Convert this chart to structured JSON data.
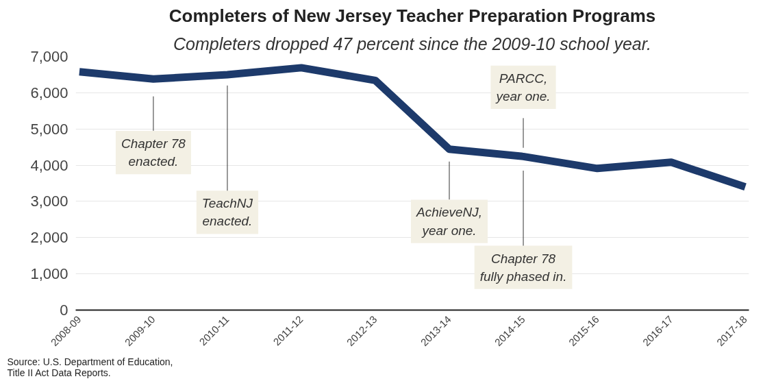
{
  "chart_data": {
    "type": "line",
    "title": "Completers of New Jersey Teacher Preparation Programs",
    "subtitle": "Completers dropped 47 percent since the 2009-10 school year.",
    "categories": [
      "2008-09",
      "2009-10",
      "2010-11",
      "2011-12",
      "2012-13",
      "2013-14",
      "2014-15",
      "2015-16",
      "2016-17",
      "2017-18"
    ],
    "series": [
      {
        "color": "#1d3a6b",
        "values": [
          6580,
          6380,
          6500,
          6690,
          6340,
          4440,
          4240,
          3910,
          4080,
          3400
        ]
      }
    ],
    "ylim": [
      0,
      7000
    ],
    "yticks": [
      {
        "value": 0,
        "label": "0"
      },
      {
        "value": 1000,
        "label": "1,000"
      },
      {
        "value": 2000,
        "label": "2,000"
      },
      {
        "value": 3000,
        "label": "3,000"
      },
      {
        "value": 4000,
        "label": "4,000"
      },
      {
        "value": 5000,
        "label": "5,000"
      },
      {
        "value": 6000,
        "label": "6,000"
      },
      {
        "value": 7000,
        "label": "7,000"
      }
    ],
    "grid": "y",
    "marker": "none",
    "line_style": "solid",
    "annotations": [
      "Chapter 78\nenacted.",
      "TeachNJ\nenacted.",
      "AchieveNJ,\nyear one.",
      "PARCC,\nyear one.",
      "Chapter 78\nfully phased in.",
      "Source: U.S. Department of Education,\nTitle II Act Data Reports."
    ]
  }
}
